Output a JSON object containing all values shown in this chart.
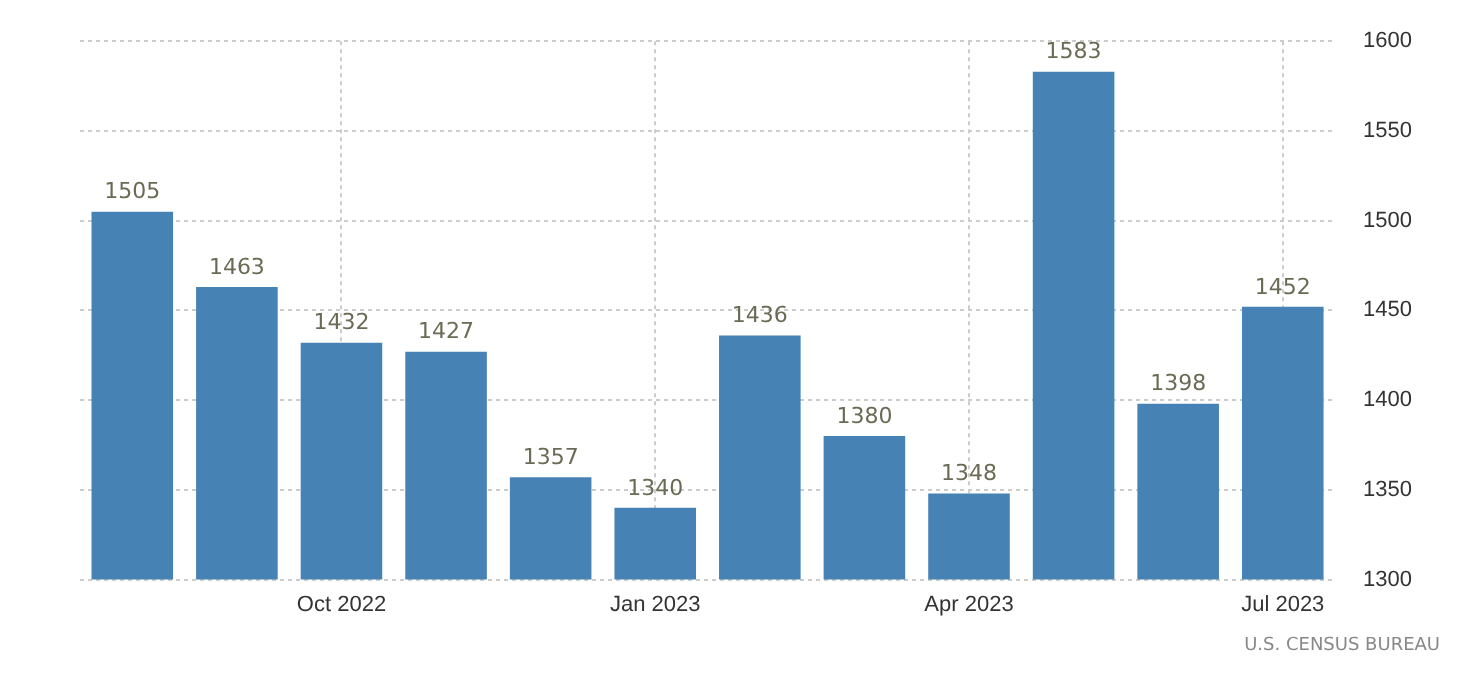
{
  "chart_data": {
    "type": "bar",
    "categories": [
      null,
      null,
      "Oct 2022",
      null,
      null,
      "Jan 2023",
      null,
      null,
      "Apr 2023",
      null,
      null,
      "Jul 2023"
    ],
    "series": [
      {
        "color": "#4682b4",
        "values": [
          1505,
          1463,
          1432,
          1427,
          1357,
          1340,
          1436,
          1380,
          1348,
          1583,
          1398,
          1452
        ]
      }
    ],
    "ylim": [
      1300,
      1600
    ],
    "yticks": [
      1300,
      1350,
      1400,
      1450,
      1500,
      1550,
      1600
    ],
    "grid": true,
    "data_labels": true,
    "legend": false,
    "annotations": [
      "U.S. CENSUS BUREAU"
    ]
  }
}
